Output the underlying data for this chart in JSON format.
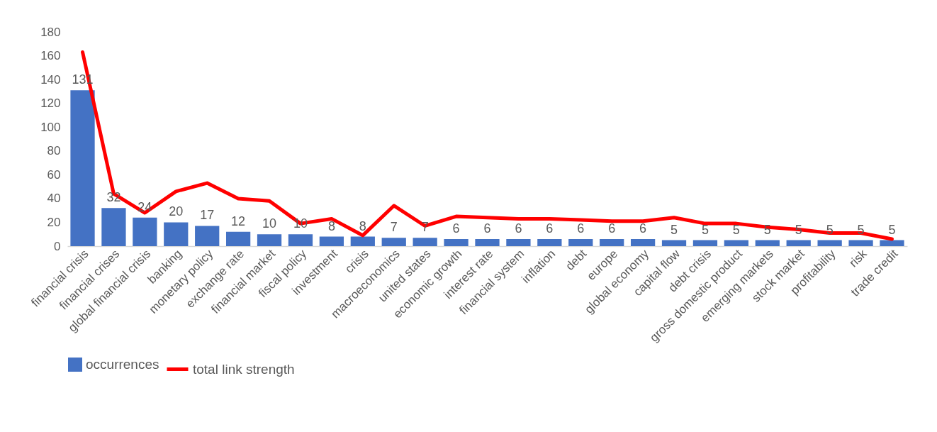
{
  "chart_data": {
    "type": "bar",
    "categories": [
      "financial crisis",
      "financial crises",
      "global financial crisis",
      "banking",
      "monetary policy",
      "exchange rate",
      "financial market",
      "fiscal policy",
      "investment",
      "crisis",
      "macroeconomics",
      "united states",
      "economic growth",
      "interest rate",
      "financial system",
      "inflation",
      "debt",
      "europe",
      "global economy",
      "capital flow",
      "debt crisis",
      "gross domestic product",
      "emerging markets",
      "stock market",
      "profitability",
      "risk",
      "trade credit"
    ],
    "series": [
      {
        "name": "occurrences",
        "color": "#4472c4",
        "values": [
          131,
          32,
          24,
          20,
          17,
          12,
          10,
          10,
          8,
          8,
          7,
          7,
          6,
          6,
          6,
          6,
          6,
          6,
          6,
          5,
          5,
          5,
          5,
          5,
          5,
          5,
          5
        ],
        "value_labels": [
          "131",
          "32",
          "24",
          "20",
          "17",
          "12",
          "10",
          "10",
          "8",
          "8",
          "7",
          "7",
          "6",
          "6",
          "6",
          "6",
          "6",
          "6",
          "6",
          "5",
          "5",
          "5",
          "5",
          "5",
          "5",
          "5",
          "5"
        ]
      },
      {
        "name": "total link strength",
        "type": "line",
        "color": "#ff0000",
        "values": [
          163,
          44,
          28,
          46,
          53,
          40,
          38,
          19,
          23,
          9,
          34,
          17,
          25,
          24,
          23,
          23,
          22,
          21,
          21,
          24,
          19,
          19,
          16,
          14,
          11,
          11,
          6
        ]
      }
    ],
    "ylim": [
      0,
      180
    ],
    "yticks": [
      0,
      20,
      40,
      60,
      80,
      100,
      120,
      140,
      160,
      180
    ],
    "grid": false,
    "legend": "bottom",
    "marker": "none",
    "line_style": "solid"
  }
}
